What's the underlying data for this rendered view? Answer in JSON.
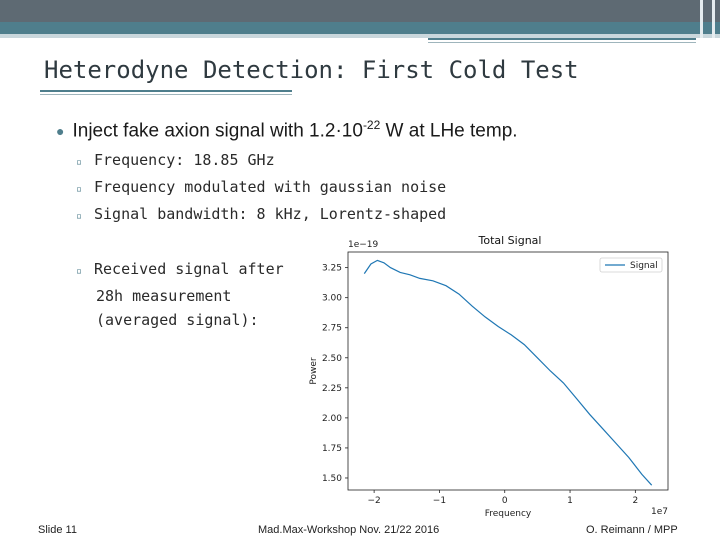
{
  "slide": {
    "title": "Heterodyne Detection: First Cold Test",
    "bullet_main": {
      "prefix": "Inject fake axion signal with 1.2",
      "mult": "·",
      "base": "10",
      "exponent": "-22",
      "suffix": " W at LHe temp."
    },
    "sub_items": [
      "Frequency: 18.85 GHz",
      "Frequency modulated with gaussian noise",
      "Signal bandwidth: 8 kHz, Lorentz-shaped"
    ],
    "received": {
      "line1": "Received signal after",
      "line2": "28h measurement",
      "line3": "(averaged signal):"
    }
  },
  "footer": {
    "slide_number": "Slide 11",
    "event": "Mad.Max-Workshop Nov. 21/22 2016",
    "author": "O. Reimann / MPP"
  },
  "colors": {
    "accent": "#4f7e8c",
    "line": "#1f77b4"
  },
  "chart_data": {
    "type": "line",
    "title": "Total Signal",
    "xlabel": "Frequency",
    "ylabel": "Power",
    "x_offset_label": "1e7",
    "y_offset_label": "1e−19",
    "xlim": [
      -2.4,
      2.5
    ],
    "ylim": [
      1.4,
      3.38
    ],
    "x_ticks": [
      -2,
      -1,
      0,
      1,
      2
    ],
    "x_tick_labels": [
      "−2",
      "−1",
      "0",
      "1",
      "2"
    ],
    "y_ticks": [
      1.5,
      1.75,
      2.0,
      2.25,
      2.5,
      2.75,
      3.0,
      3.25
    ],
    "y_tick_labels": [
      "1.50",
      "1.75",
      "2.00",
      "2.25",
      "2.50",
      "2.75",
      "3.00",
      "3.25"
    ],
    "legend": {
      "entries": [
        "Signal"
      ],
      "position": "top-right"
    },
    "series": [
      {
        "name": "Signal",
        "x": [
          -2.15,
          -2.05,
          -1.95,
          -1.85,
          -1.75,
          -1.6,
          -1.45,
          -1.3,
          -1.1,
          -0.9,
          -0.7,
          -0.5,
          -0.3,
          -0.1,
          0.1,
          0.3,
          0.5,
          0.7,
          0.9,
          1.1,
          1.3,
          1.5,
          1.7,
          1.9,
          2.1,
          2.25
        ],
        "values": [
          3.2,
          3.28,
          3.31,
          3.29,
          3.25,
          3.21,
          3.19,
          3.16,
          3.14,
          3.1,
          3.03,
          2.93,
          2.84,
          2.76,
          2.69,
          2.61,
          2.5,
          2.39,
          2.29,
          2.16,
          2.03,
          1.91,
          1.79,
          1.67,
          1.53,
          1.44
        ]
      }
    ]
  }
}
